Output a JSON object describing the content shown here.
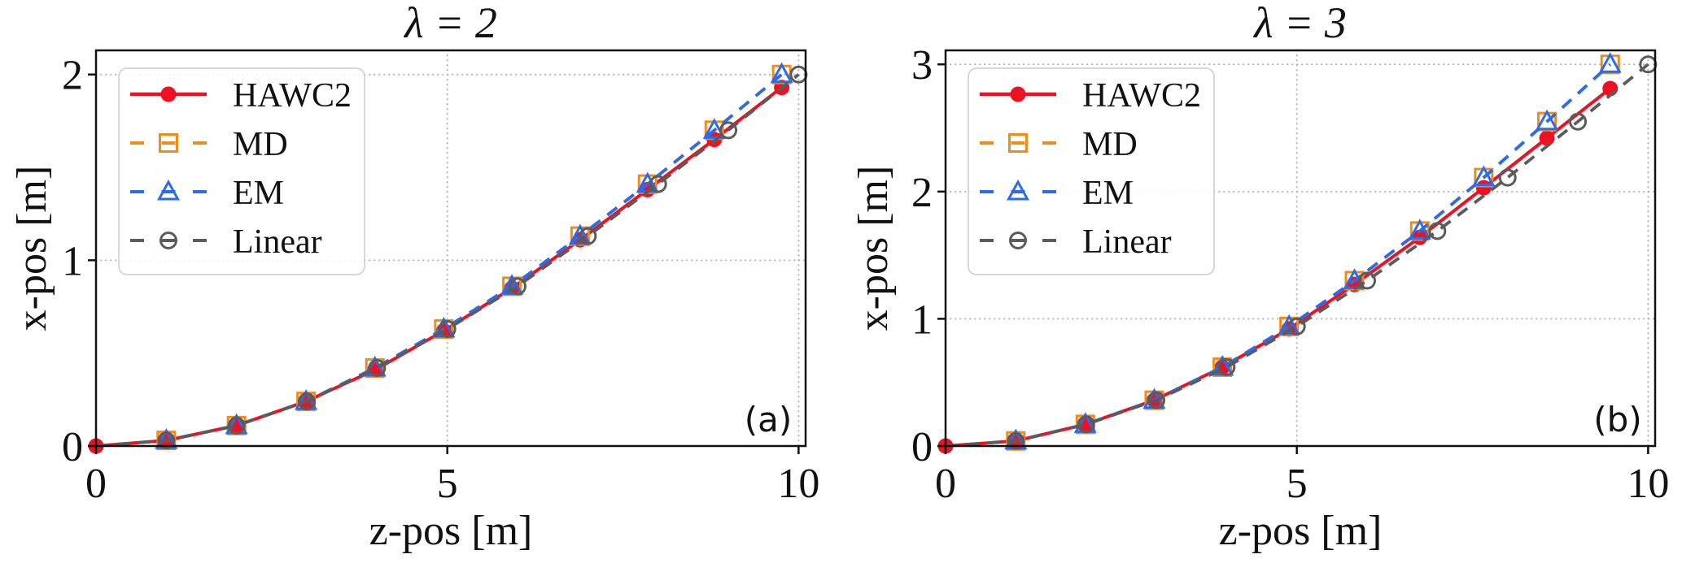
{
  "figure": {
    "background": "#ffffff",
    "style": {
      "axis_color": "#111111",
      "text_color": "#111111",
      "grid_color": "#b5b5b5",
      "legend_border": "#cccccc",
      "legend_face": "#ffffff"
    }
  },
  "chart_data": [
    {
      "type": "line",
      "title": "λ = 2",
      "panel_label": "(a)",
      "xlabel": "z-pos [m]",
      "ylabel": "x-pos [m]",
      "xlim": [
        0,
        10.1
      ],
      "ylim": [
        0,
        2.13
      ],
      "xticks": [
        0,
        5,
        10
      ],
      "yticks": [
        0,
        1,
        2
      ],
      "grid": true,
      "grid_style": "dotted",
      "legend_position": "upper-left",
      "series": [
        {
          "name": "HAWC2",
          "color": "#ee1122",
          "line_style": "solid",
          "marker": "filled-circle",
          "marker_from": 0,
          "z": [
            0,
            1.0,
            2.0,
            2.99,
            3.97,
            4.95,
            5.92,
            6.89,
            7.85,
            8.8,
            9.76
          ],
          "x": [
            0,
            0.03,
            0.11,
            0.24,
            0.41,
            0.62,
            0.85,
            1.11,
            1.38,
            1.65,
            1.93
          ]
        },
        {
          "name": "MD",
          "color": "#ee8c1c",
          "line_style": "dashed",
          "marker": "open-square",
          "marker_from": 1,
          "z": [
            0,
            1.0,
            2.0,
            2.99,
            3.97,
            4.95,
            5.92,
            6.89,
            7.85,
            8.8,
            9.76
          ],
          "x": [
            0,
            0.03,
            0.11,
            0.24,
            0.42,
            0.63,
            0.86,
            1.13,
            1.41,
            1.7,
            2.0
          ]
        },
        {
          "name": "EM",
          "color": "#2d6bee",
          "line_style": "dashed",
          "marker": "open-triangle",
          "marker_from": 1,
          "z": [
            0,
            1.0,
            2.0,
            2.99,
            3.97,
            4.95,
            5.92,
            6.89,
            7.85,
            8.8,
            9.76
          ],
          "x": [
            0,
            0.03,
            0.11,
            0.24,
            0.42,
            0.63,
            0.86,
            1.13,
            1.41,
            1.7,
            2.0
          ]
        },
        {
          "name": "Linear",
          "color": "#5b5b5b",
          "line_style": "dashed",
          "marker": "open-circle",
          "marker_from": 1,
          "z": [
            0,
            1,
            2,
            3,
            4,
            5,
            6,
            7,
            8,
            9,
            10
          ],
          "x": [
            0,
            0.03,
            0.11,
            0.24,
            0.42,
            0.63,
            0.86,
            1.13,
            1.41,
            1.7,
            2.0
          ]
        }
      ]
    },
    {
      "type": "line",
      "title": "λ = 3",
      "panel_label": "(b)",
      "xlabel": "z-pos [m]",
      "ylabel": "x-pos [m]",
      "xlim": [
        0,
        10.1
      ],
      "ylim": [
        0,
        3.11
      ],
      "xticks": [
        0,
        5,
        10
      ],
      "yticks": [
        0,
        1,
        2,
        3
      ],
      "grid": true,
      "grid_style": "dotted",
      "legend_position": "upper-left",
      "series": [
        {
          "name": "HAWC2",
          "color": "#ee1122",
          "line_style": "solid",
          "marker": "filled-circle",
          "marker_from": 0,
          "z": [
            0,
            1.0,
            1.99,
            2.97,
            3.94,
            4.89,
            5.82,
            6.75,
            7.66,
            8.56,
            9.46
          ],
          "x": [
            0,
            0.04,
            0.17,
            0.36,
            0.62,
            0.92,
            1.27,
            1.64,
            2.03,
            2.42,
            2.81
          ]
        },
        {
          "name": "MD",
          "color": "#ee8c1c",
          "line_style": "dashed",
          "marker": "open-square",
          "marker_from": 1,
          "z": [
            0,
            1.0,
            1.99,
            2.97,
            3.94,
            4.89,
            5.82,
            6.75,
            7.66,
            8.56,
            9.46
          ],
          "x": [
            0,
            0.04,
            0.17,
            0.36,
            0.62,
            0.94,
            1.3,
            1.69,
            2.11,
            2.55,
            3.0
          ]
        },
        {
          "name": "EM",
          "color": "#2d6bee",
          "line_style": "dashed",
          "marker": "open-triangle",
          "marker_from": 1,
          "z": [
            0,
            1.0,
            1.99,
            2.97,
            3.94,
            4.89,
            5.82,
            6.75,
            7.66,
            8.56,
            9.46
          ],
          "x": [
            0,
            0.04,
            0.17,
            0.36,
            0.62,
            0.94,
            1.3,
            1.69,
            2.11,
            2.55,
            3.0
          ]
        },
        {
          "name": "Linear",
          "color": "#5b5b5b",
          "line_style": "dashed",
          "marker": "open-circle",
          "marker_from": 1,
          "z": [
            0,
            1,
            2,
            3,
            4,
            5,
            6,
            7,
            8,
            9,
            10
          ],
          "x": [
            0,
            0.04,
            0.17,
            0.36,
            0.62,
            0.94,
            1.3,
            1.69,
            2.11,
            2.55,
            3.0
          ]
        }
      ]
    }
  ]
}
